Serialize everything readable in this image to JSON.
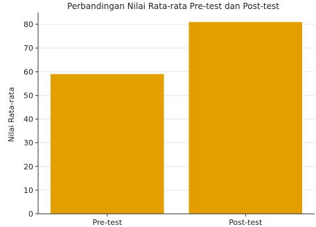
{
  "chart_data": {
    "type": "bar",
    "title": "Perbandingan Nilai Rata-rata Pre-test dan Post-test",
    "xlabel": "",
    "ylabel": "Nilai Rata-rata",
    "categories": [
      "Pre-test",
      "Post-test"
    ],
    "values": [
      59,
      81
    ],
    "ylim": [
      0,
      85
    ],
    "yticks": [
      0,
      10,
      20,
      30,
      40,
      50,
      60,
      70,
      80
    ],
    "bar_color": "#E39F00",
    "grid": true
  }
}
